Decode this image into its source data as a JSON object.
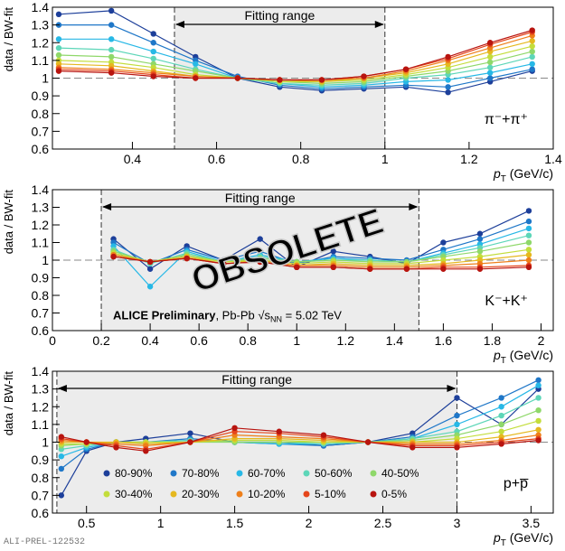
{
  "chart_data": [
    {
      "type": "line",
      "ylabel": "data / BW-fit",
      "xlabel_main": "p",
      "xlabel_sub": "T",
      "xlabel_unit": "(GeV/c)",
      "xlim": [
        0.21,
        1.4
      ],
      "ylim": [
        0.6,
        1.4
      ],
      "x_ticks": [
        0.4,
        0.6,
        0.8,
        1,
        1.2,
        1.4
      ],
      "y_ticks": [
        0.6,
        0.7,
        0.8,
        0.9,
        1,
        1.1,
        1.2,
        1.3,
        1.4
      ],
      "fitting_range": [
        0.5,
        1.0
      ],
      "fitting_range_label": "Fitting range",
      "species": "π⁻+π⁺",
      "x": [
        0.225,
        0.35,
        0.45,
        0.55,
        0.65,
        0.75,
        0.85,
        0.95,
        1.05,
        1.15,
        1.25,
        1.35
      ],
      "series": [
        {
          "name": "80-90%",
          "values": [
            1.36,
            1.38,
            1.25,
            1.12,
            1.0,
            0.95,
            0.93,
            0.94,
            0.95,
            0.92,
            0.98,
            1.04
          ]
        },
        {
          "name": "70-80%",
          "values": [
            1.3,
            1.3,
            1.2,
            1.1,
            1.01,
            0.96,
            0.94,
            0.95,
            0.96,
            0.95,
            1.0,
            1.05
          ]
        },
        {
          "name": "60-70%",
          "values": [
            1.22,
            1.22,
            1.15,
            1.08,
            1.0,
            0.97,
            0.95,
            0.96,
            0.98,
            0.99,
            1.03,
            1.08
          ]
        },
        {
          "name": "50-60%",
          "values": [
            1.17,
            1.16,
            1.11,
            1.05,
            1.0,
            0.97,
            0.96,
            0.97,
            1.0,
            1.02,
            1.06,
            1.12
          ]
        },
        {
          "name": "40-50%",
          "values": [
            1.13,
            1.12,
            1.08,
            1.04,
            1.0,
            0.98,
            0.97,
            0.98,
            1.01,
            1.04,
            1.09,
            1.15
          ]
        },
        {
          "name": "30-40%",
          "values": [
            1.1,
            1.09,
            1.06,
            1.02,
            1.0,
            0.98,
            0.98,
            0.99,
            1.02,
            1.06,
            1.12,
            1.18
          ]
        },
        {
          "name": "20-30%",
          "values": [
            1.08,
            1.07,
            1.04,
            1.01,
            1.0,
            0.99,
            0.98,
            1.0,
            1.03,
            1.08,
            1.15,
            1.21
          ]
        },
        {
          "name": "10-20%",
          "values": [
            1.06,
            1.05,
            1.03,
            1.01,
            1.0,
            0.99,
            0.99,
            1.0,
            1.04,
            1.1,
            1.17,
            1.24
          ]
        },
        {
          "name": "5-10%",
          "values": [
            1.05,
            1.04,
            1.02,
            1.0,
            1.0,
            0.99,
            0.99,
            1.01,
            1.05,
            1.11,
            1.19,
            1.26
          ]
        },
        {
          "name": "0-5%",
          "values": [
            1.04,
            1.03,
            1.01,
            1.0,
            1.0,
            0.99,
            0.99,
            1.01,
            1.05,
            1.12,
            1.2,
            1.27
          ]
        }
      ]
    },
    {
      "type": "line",
      "ylabel": "data / BW-fit",
      "xlabel_main": "p",
      "xlabel_sub": "T",
      "xlabel_unit": "(GeV/c)",
      "xlim": [
        0,
        2.05
      ],
      "ylim": [
        0.6,
        1.4
      ],
      "x_ticks": [
        0,
        0.2,
        0.4,
        0.6,
        0.8,
        1,
        1.2,
        1.4,
        1.6,
        1.8,
        2
      ],
      "y_ticks": [
        0.6,
        0.7,
        0.8,
        0.9,
        1,
        1.1,
        1.2,
        1.3,
        1.4
      ],
      "fitting_range": [
        0.2,
        1.5
      ],
      "fitting_range_label": "Fitting range",
      "species": "K⁻+K⁺",
      "annotation_bold": "ALICE Preliminary",
      "annotation_rest": ", Pb-Pb √s",
      "annotation_sub": "NN",
      "annotation_end": " = 5.02 TeV",
      "watermark": "OBSOLETE",
      "x": [
        0.25,
        0.4,
        0.55,
        0.7,
        0.85,
        1.0,
        1.15,
        1.3,
        1.45,
        1.6,
        1.75,
        1.95
      ],
      "series": [
        {
          "name": "80-90%",
          "values": [
            1.12,
            0.95,
            1.08,
            1.0,
            1.12,
            0.96,
            1.05,
            1.02,
            0.98,
            1.1,
            1.15,
            1.28
          ]
        },
        {
          "name": "70-80%",
          "values": [
            1.1,
            0.98,
            1.06,
            1.0,
            1.05,
            0.98,
            1.02,
            1.01,
            1.0,
            1.06,
            1.12,
            1.22
          ]
        },
        {
          "name": "60-70%",
          "values": [
            1.08,
            0.85,
            1.05,
            0.99,
            1.03,
            0.99,
            1.01,
            1.0,
            0.99,
            1.04,
            1.09,
            1.18
          ]
        },
        {
          "name": "50-60%",
          "values": [
            1.06,
            0.98,
            1.04,
            0.99,
            1.02,
            0.99,
            1.0,
            1.0,
            0.99,
            1.03,
            1.07,
            1.14
          ]
        },
        {
          "name": "40-50%",
          "values": [
            1.05,
            0.99,
            1.03,
            0.99,
            1.01,
            0.99,
            1.0,
            0.99,
            0.99,
            1.02,
            1.05,
            1.1
          ]
        },
        {
          "name": "30-40%",
          "values": [
            1.04,
            0.99,
            1.02,
            0.99,
            1.0,
            0.98,
            0.99,
            0.98,
            0.98,
            1.0,
            1.02,
            1.06
          ]
        },
        {
          "name": "20-30%",
          "values": [
            1.03,
            0.99,
            1.02,
            0.98,
            1.0,
            0.97,
            0.98,
            0.97,
            0.97,
            0.98,
            1.0,
            1.03
          ]
        },
        {
          "name": "10-20%",
          "values": [
            1.03,
            0.99,
            1.01,
            0.98,
            0.99,
            0.97,
            0.97,
            0.96,
            0.96,
            0.97,
            0.98,
            1.0
          ]
        },
        {
          "name": "5-10%",
          "values": [
            1.02,
            0.99,
            1.01,
            0.98,
            0.99,
            0.96,
            0.96,
            0.95,
            0.95,
            0.96,
            0.96,
            0.97
          ]
        },
        {
          "name": "0-5%",
          "values": [
            1.02,
            0.99,
            1.01,
            0.98,
            0.99,
            0.96,
            0.96,
            0.95,
            0.95,
            0.95,
            0.95,
            0.96
          ]
        }
      ]
    },
    {
      "type": "line",
      "ylabel": "data / BW-fit",
      "xlabel_main": "p",
      "xlabel_sub": "T",
      "xlabel_unit": "(GeV/c)",
      "xlim": [
        0.27,
        3.65
      ],
      "ylim": [
        0.6,
        1.4
      ],
      "x_ticks": [
        0.5,
        1,
        1.5,
        2,
        2.5,
        3,
        3.5
      ],
      "y_ticks": [
        0.6,
        0.7,
        0.8,
        0.9,
        1,
        1.1,
        1.2,
        1.3,
        1.4
      ],
      "fitting_range": [
        0.3,
        3.0
      ],
      "fitting_range_label": "Fitting range",
      "species": "p+p̅",
      "x": [
        0.33,
        0.5,
        0.7,
        0.9,
        1.2,
        1.5,
        1.8,
        2.1,
        2.4,
        2.7,
        3.0,
        3.3,
        3.55
      ],
      "series": [
        {
          "name": "80-90%",
          "values": [
            0.7,
            0.95,
            1.0,
            1.02,
            1.05,
            1.0,
            1.0,
            0.98,
            1.0,
            1.05,
            1.25,
            1.1,
            1.3
          ]
        },
        {
          "name": "70-80%",
          "values": [
            0.85,
            0.96,
            1.0,
            1.0,
            1.02,
            1.0,
            0.99,
            0.98,
            1.0,
            1.03,
            1.15,
            1.25,
            1.35
          ]
        },
        {
          "name": "60-70%",
          "values": [
            0.92,
            0.97,
            1.0,
            1.0,
            1.01,
            1.0,
            0.99,
            0.99,
            1.0,
            1.02,
            1.1,
            1.2,
            1.32
          ]
        },
        {
          "name": "50-60%",
          "values": [
            0.96,
            0.98,
            1.0,
            1.0,
            1.01,
            1.0,
            1.0,
            0.99,
            1.0,
            1.02,
            1.06,
            1.15,
            1.25
          ]
        },
        {
          "name": "40-50%",
          "values": [
            0.98,
            0.99,
            1.0,
            1.0,
            1.0,
            1.0,
            1.0,
            1.0,
            1.0,
            1.01,
            1.04,
            1.1,
            1.18
          ]
        },
        {
          "name": "30-40%",
          "values": [
            0.99,
            0.99,
            1.0,
            1.0,
            1.0,
            1.01,
            1.01,
            1.0,
            1.0,
            1.0,
            1.02,
            1.06,
            1.12
          ]
        },
        {
          "name": "20-30%",
          "values": [
            1.0,
            1.0,
            1.0,
            0.99,
            1.0,
            1.02,
            1.02,
            1.01,
            1.0,
            1.0,
            1.0,
            1.03,
            1.07
          ]
        },
        {
          "name": "10-20%",
          "values": [
            1.01,
            1.0,
            0.99,
            0.98,
            1.0,
            1.04,
            1.03,
            1.02,
            1.0,
            0.99,
            0.99,
            1.01,
            1.04
          ]
        },
        {
          "name": "5-10%",
          "values": [
            1.02,
            1.0,
            0.98,
            0.96,
            1.0,
            1.06,
            1.05,
            1.03,
            1.0,
            0.98,
            0.98,
            1.0,
            1.02
          ]
        },
        {
          "name": "0-5%",
          "values": [
            1.03,
            1.0,
            0.97,
            0.95,
            1.0,
            1.08,
            1.06,
            1.04,
            1.0,
            0.97,
            0.97,
            0.99,
            1.01
          ]
        }
      ]
    }
  ],
  "legend": [
    {
      "name": "80-90%",
      "color": "#1d3f9a"
    },
    {
      "name": "70-80%",
      "color": "#1f77c8"
    },
    {
      "name": "60-70%",
      "color": "#27b8e6"
    },
    {
      "name": "50-60%",
      "color": "#5dd6b8"
    },
    {
      "name": "40-50%",
      "color": "#8fd86a"
    },
    {
      "name": "30-40%",
      "color": "#c3dd3b"
    },
    {
      "name": "20-30%",
      "color": "#e5b81f"
    },
    {
      "name": "10-20%",
      "color": "#ee7f1a"
    },
    {
      "name": "5-10%",
      "color": "#e5461b"
    },
    {
      "name": "0-5%",
      "color": "#b8140f"
    }
  ],
  "footer": "ALI-PREL-122532"
}
